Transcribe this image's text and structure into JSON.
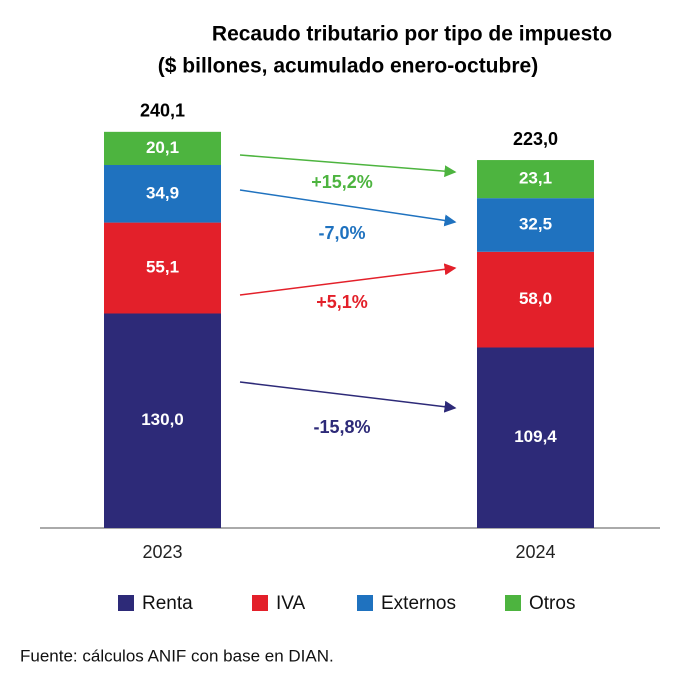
{
  "chart_data": {
    "type": "stacked_bar",
    "title": "Recaudo tributario por tipo de impuesto",
    "subtitle": "($ billones, acumulado enero-octubre)",
    "categories": [
      "2023",
      "2024"
    ],
    "series": [
      {
        "name": "Renta",
        "color": "#2d2a78",
        "values": [
          130.0,
          109.4
        ],
        "value_labels": [
          "130,0",
          "109,4"
        ],
        "change_label": "-15,8%"
      },
      {
        "name": "IVA",
        "color": "#e3202a",
        "values": [
          55.1,
          58.0
        ],
        "value_labels": [
          "55,1",
          "58,0"
        ],
        "change_label": "+5,1%"
      },
      {
        "name": "Externos",
        "color": "#1f72bf",
        "values": [
          34.9,
          32.5
        ],
        "value_labels": [
          "34,9",
          "32,5"
        ],
        "change_label": "-7,0%"
      },
      {
        "name": "Otros",
        "color": "#4db43f",
        "values": [
          20.1,
          23.1
        ],
        "value_labels": [
          "20,1",
          "23,1"
        ],
        "change_label": "+15,2%"
      }
    ],
    "totals": [
      240.1,
      223.0
    ],
    "total_labels": [
      "240,1",
      "223,0"
    ],
    "source": "Fuente: cálculos ANIF con base en DIAN."
  }
}
